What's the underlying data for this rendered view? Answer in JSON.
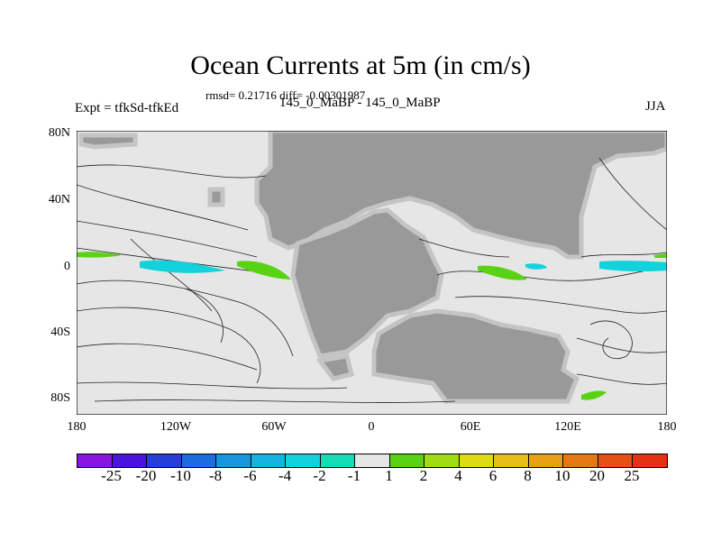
{
  "title": "Ocean Currents at 5m (in cm/s)",
  "stats": "rmsd= 0.21716 diff= -0.00301987",
  "left_label": "Expt = tfkSd-tfkEd",
  "center_label": "145_0_MaBP - 145_0_MaBP",
  "right_label": "JJA",
  "y_ticks": [
    "80N",
    "40N",
    "0",
    "40S",
    "80S"
  ],
  "x_ticks": [
    "180",
    "120W",
    "60W",
    "0",
    "60E",
    "120E",
    "180"
  ],
  "colorbar": {
    "colors": [
      "#8a14e0",
      "#4a14dc",
      "#2440d8",
      "#1a6ce0",
      "#1496e0",
      "#14b4e0",
      "#14d2dc",
      "#14dcb4",
      "#e6e6e6",
      "#5ad214",
      "#a0dc14",
      "#dcdc14",
      "#e6be14",
      "#e6a014",
      "#e67814",
      "#e65014",
      "#e63214"
    ],
    "labels": [
      "-25",
      "-20",
      "-10",
      "-8",
      "-6",
      "-4",
      "-2",
      "-1",
      "1",
      "2",
      "4",
      "6",
      "8",
      "10",
      "20",
      "25"
    ]
  },
  "colors": {
    "ocean": "#e6e6e6",
    "land": "#999999",
    "coast": "#c4c4c4"
  }
}
